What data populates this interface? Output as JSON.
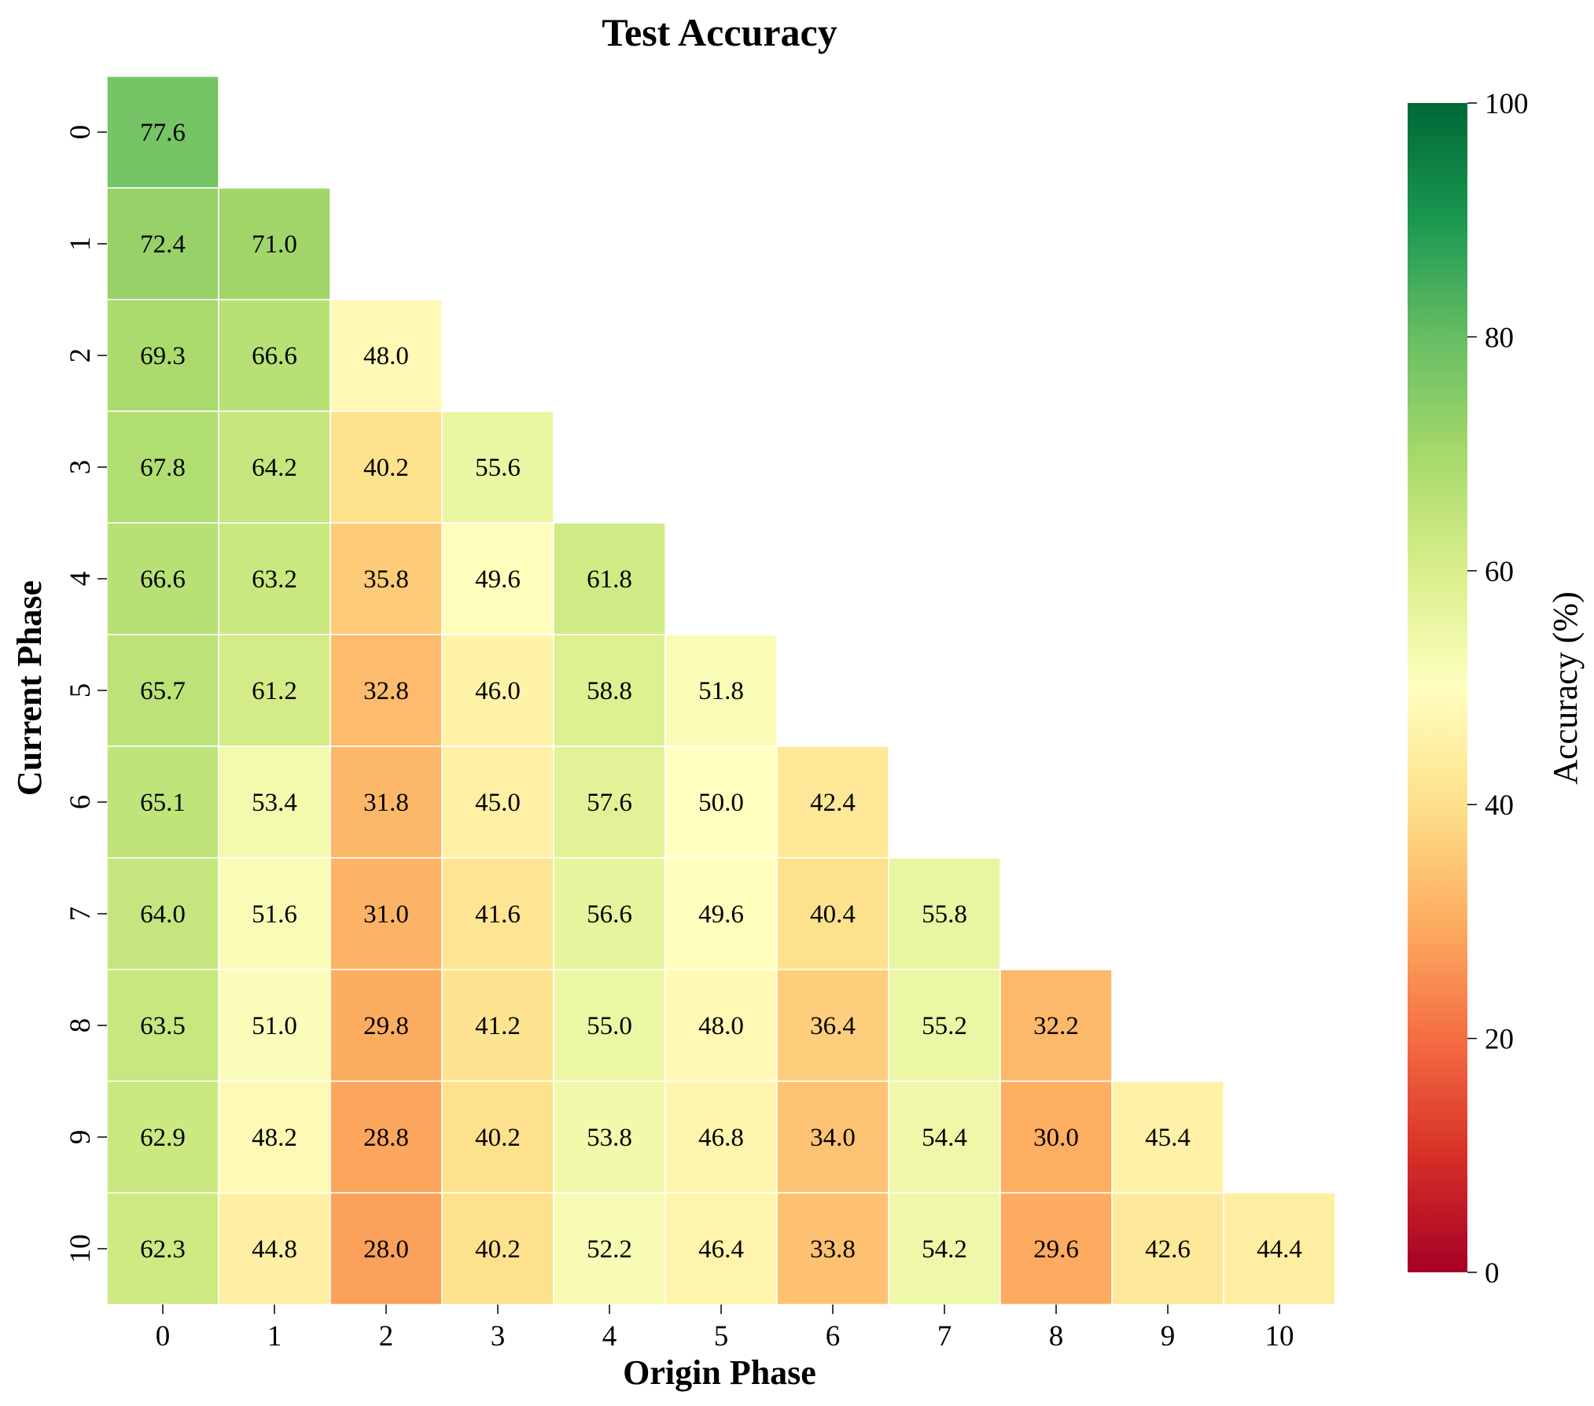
{
  "chart_data": {
    "type": "heatmap",
    "title": "Test Accuracy",
    "xlabel": "Origin Phase",
    "ylabel": "Current Phase",
    "x_categories": [
      "0",
      "1",
      "2",
      "3",
      "4",
      "5",
      "6",
      "7",
      "8",
      "9",
      "10"
    ],
    "y_categories": [
      "0",
      "1",
      "2",
      "3",
      "4",
      "5",
      "6",
      "7",
      "8",
      "9",
      "10"
    ],
    "mask": "upper-triangle-above-diagonal",
    "values": [
      [
        77.6
      ],
      [
        72.4,
        71.0
      ],
      [
        69.3,
        66.6,
        48.0
      ],
      [
        67.8,
        64.2,
        40.2,
        55.6
      ],
      [
        66.6,
        63.2,
        35.8,
        49.6,
        61.8
      ],
      [
        65.7,
        61.2,
        32.8,
        46.0,
        58.8,
        51.8
      ],
      [
        65.1,
        53.4,
        31.8,
        45.0,
        57.6,
        50.0,
        42.4
      ],
      [
        64.0,
        51.6,
        31.0,
        41.6,
        56.6,
        49.6,
        40.4,
        55.8
      ],
      [
        63.5,
        51.0,
        29.8,
        41.2,
        55.0,
        48.0,
        36.4,
        55.2,
        32.2
      ],
      [
        62.9,
        48.2,
        28.8,
        40.2,
        53.8,
        46.8,
        34.0,
        54.4,
        30.0,
        45.4
      ],
      [
        62.3,
        44.8,
        28.0,
        40.2,
        52.2,
        46.4,
        33.8,
        54.2,
        29.6,
        42.6,
        44.4
      ]
    ],
    "value_format": "0.1f",
    "colormap": "RdYlGn",
    "colormap_stops": [
      "#a50026",
      "#d73027",
      "#f46d43",
      "#fdae61",
      "#fee08b",
      "#ffffbf",
      "#d9ef8b",
      "#a6d96a",
      "#66bd63",
      "#1a9850",
      "#006837"
    ],
    "vmin": 0,
    "vmax": 100,
    "colorbar": {
      "label": "Accuracy (%)",
      "ticks": [
        "0",
        "20",
        "40",
        "60",
        "80",
        "100"
      ]
    }
  }
}
